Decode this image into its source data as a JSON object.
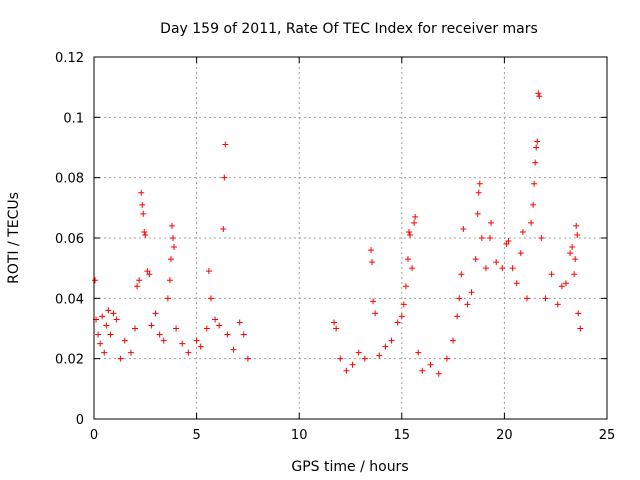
{
  "chart_data": {
    "type": "scatter",
    "title": "Day 159 of 2011, Rate Of TEC Index for receiver mars",
    "xlabel": "GPS time / hours",
    "ylabel": "ROTI / TECUs",
    "xlim": [
      0,
      25
    ],
    "ylim": [
      0,
      0.12
    ],
    "xticks": [
      0,
      5,
      10,
      15,
      20,
      25
    ],
    "xtick_labels": [
      "0",
      "5",
      "10",
      "15",
      "20",
      "25"
    ],
    "yticks": [
      0,
      0.02,
      0.04,
      0.06,
      0.08,
      0.1,
      0.12
    ],
    "ytick_labels": [
      "0",
      "0.02",
      "0.04",
      "0.06",
      "0.08",
      "0.1",
      "0.12"
    ],
    "grid": true,
    "marker": "plus",
    "marker_color": "#ff0000",
    "series": [
      {
        "points": [
          [
            0.05,
            0.046
          ],
          [
            0.1,
            0.033
          ],
          [
            0.2,
            0.028
          ],
          [
            0.3,
            0.025
          ],
          [
            0.4,
            0.034
          ],
          [
            0.5,
            0.022
          ],
          [
            0.6,
            0.031
          ],
          [
            0.7,
            0.036
          ],
          [
            0.8,
            0.028
          ],
          [
            0.95,
            0.035
          ],
          [
            1.1,
            0.033
          ],
          [
            1.3,
            0.02
          ],
          [
            1.5,
            0.026
          ],
          [
            1.8,
            0.022
          ],
          [
            2.0,
            0.03
          ],
          [
            2.1,
            0.044
          ],
          [
            2.2,
            0.046
          ],
          [
            2.3,
            0.075
          ],
          [
            2.35,
            0.071
          ],
          [
            2.4,
            0.068
          ],
          [
            2.45,
            0.062
          ],
          [
            2.5,
            0.061
          ],
          [
            2.6,
            0.049
          ],
          [
            2.7,
            0.048
          ],
          [
            2.8,
            0.031
          ],
          [
            3.0,
            0.035
          ],
          [
            3.2,
            0.028
          ],
          [
            3.4,
            0.026
          ],
          [
            3.6,
            0.04
          ],
          [
            3.7,
            0.046
          ],
          [
            3.75,
            0.053
          ],
          [
            3.8,
            0.064
          ],
          [
            3.85,
            0.06
          ],
          [
            3.9,
            0.057
          ],
          [
            4.0,
            0.03
          ],
          [
            4.3,
            0.025
          ],
          [
            4.6,
            0.022
          ],
          [
            5.0,
            0.026
          ],
          [
            5.2,
            0.024
          ],
          [
            5.5,
            0.03
          ],
          [
            5.6,
            0.049
          ],
          [
            5.7,
            0.04
          ],
          [
            5.9,
            0.033
          ],
          [
            6.1,
            0.031
          ],
          [
            6.3,
            0.063
          ],
          [
            6.35,
            0.08
          ],
          [
            6.4,
            0.091
          ],
          [
            6.5,
            0.028
          ],
          [
            6.8,
            0.023
          ],
          [
            7.1,
            0.032
          ],
          [
            7.3,
            0.028
          ],
          [
            7.5,
            0.02
          ],
          [
            11.7,
            0.032
          ],
          [
            11.8,
            0.03
          ],
          [
            12.0,
            0.02
          ],
          [
            12.3,
            0.016
          ],
          [
            12.6,
            0.018
          ],
          [
            12.9,
            0.022
          ],
          [
            13.2,
            0.02
          ],
          [
            13.5,
            0.056
          ],
          [
            13.55,
            0.052
          ],
          [
            13.6,
            0.039
          ],
          [
            13.7,
            0.035
          ],
          [
            13.9,
            0.021
          ],
          [
            14.2,
            0.024
          ],
          [
            14.5,
            0.026
          ],
          [
            14.8,
            0.032
          ],
          [
            15.0,
            0.034
          ],
          [
            15.1,
            0.038
          ],
          [
            15.2,
            0.044
          ],
          [
            15.3,
            0.053
          ],
          [
            15.35,
            0.062
          ],
          [
            15.4,
            0.061
          ],
          [
            15.5,
            0.05
          ],
          [
            15.6,
            0.065
          ],
          [
            15.65,
            0.067
          ],
          [
            15.8,
            0.022
          ],
          [
            16.0,
            0.016
          ],
          [
            16.4,
            0.018
          ],
          [
            16.8,
            0.015
          ],
          [
            17.2,
            0.02
          ],
          [
            17.5,
            0.026
          ],
          [
            17.7,
            0.034
          ],
          [
            17.8,
            0.04
          ],
          [
            17.9,
            0.048
          ],
          [
            18.0,
            0.063
          ],
          [
            18.2,
            0.038
          ],
          [
            18.4,
            0.042
          ],
          [
            18.6,
            0.053
          ],
          [
            18.7,
            0.068
          ],
          [
            18.75,
            0.075
          ],
          [
            18.8,
            0.078
          ],
          [
            18.9,
            0.06
          ],
          [
            19.1,
            0.05
          ],
          [
            19.3,
            0.06
          ],
          [
            19.35,
            0.065
          ],
          [
            19.6,
            0.052
          ],
          [
            19.9,
            0.05
          ],
          [
            20.1,
            0.058
          ],
          [
            20.2,
            0.059
          ],
          [
            20.4,
            0.05
          ],
          [
            20.6,
            0.045
          ],
          [
            20.8,
            0.055
          ],
          [
            20.9,
            0.062
          ],
          [
            21.1,
            0.04
          ],
          [
            21.3,
            0.065
          ],
          [
            21.4,
            0.071
          ],
          [
            21.45,
            0.078
          ],
          [
            21.5,
            0.085
          ],
          [
            21.55,
            0.09
          ],
          [
            21.6,
            0.092
          ],
          [
            21.65,
            0.108
          ],
          [
            21.7,
            0.107
          ],
          [
            21.8,
            0.06
          ],
          [
            22.0,
            0.04
          ],
          [
            22.3,
            0.048
          ],
          [
            22.6,
            0.038
          ],
          [
            22.8,
            0.044
          ],
          [
            23.0,
            0.045
          ],
          [
            23.2,
            0.055
          ],
          [
            23.3,
            0.057
          ],
          [
            23.4,
            0.048
          ],
          [
            23.45,
            0.053
          ],
          [
            23.5,
            0.064
          ],
          [
            23.55,
            0.061
          ],
          [
            23.6,
            0.035
          ],
          [
            23.7,
            0.03
          ]
        ]
      }
    ]
  }
}
